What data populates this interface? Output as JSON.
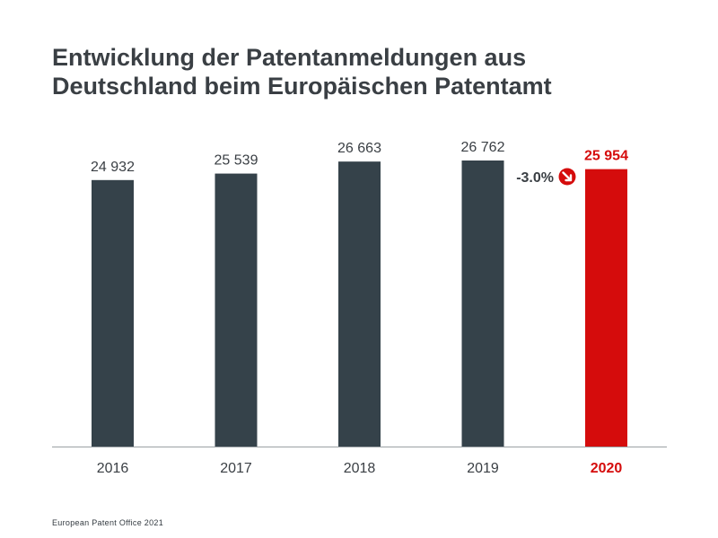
{
  "title_lines": [
    "Entwicklung der Patentanmeldungen aus",
    "Deutschland beim Europäischen Patentamt"
  ],
  "footer": "European Patent Office 2021",
  "colors": {
    "bar": "#35424a",
    "highlight": "#d50c0c",
    "axis": "#9aa0a4",
    "label": "#3a3f44",
    "title": "#3a3f44"
  },
  "chart_data": {
    "type": "bar",
    "categories": [
      "2016",
      "2017",
      "2018",
      "2019",
      "2020"
    ],
    "values": [
      24932,
      25539,
      26663,
      26762,
      25954
    ],
    "data_labels": [
      "24 932",
      "25 539",
      "26 663",
      "26 762",
      "25 954"
    ],
    "highlight_index": 4,
    "annotation": {
      "text": "-3.0%",
      "icon": "arrow-down-right-circle-icon",
      "category": "2020"
    },
    "title": "Entwicklung der Patentanmeldungen aus Deutschland beim Europäischen Patentamt",
    "xlabel": "",
    "ylabel": "",
    "grid": false,
    "ylim": [
      0,
      28500
    ]
  }
}
